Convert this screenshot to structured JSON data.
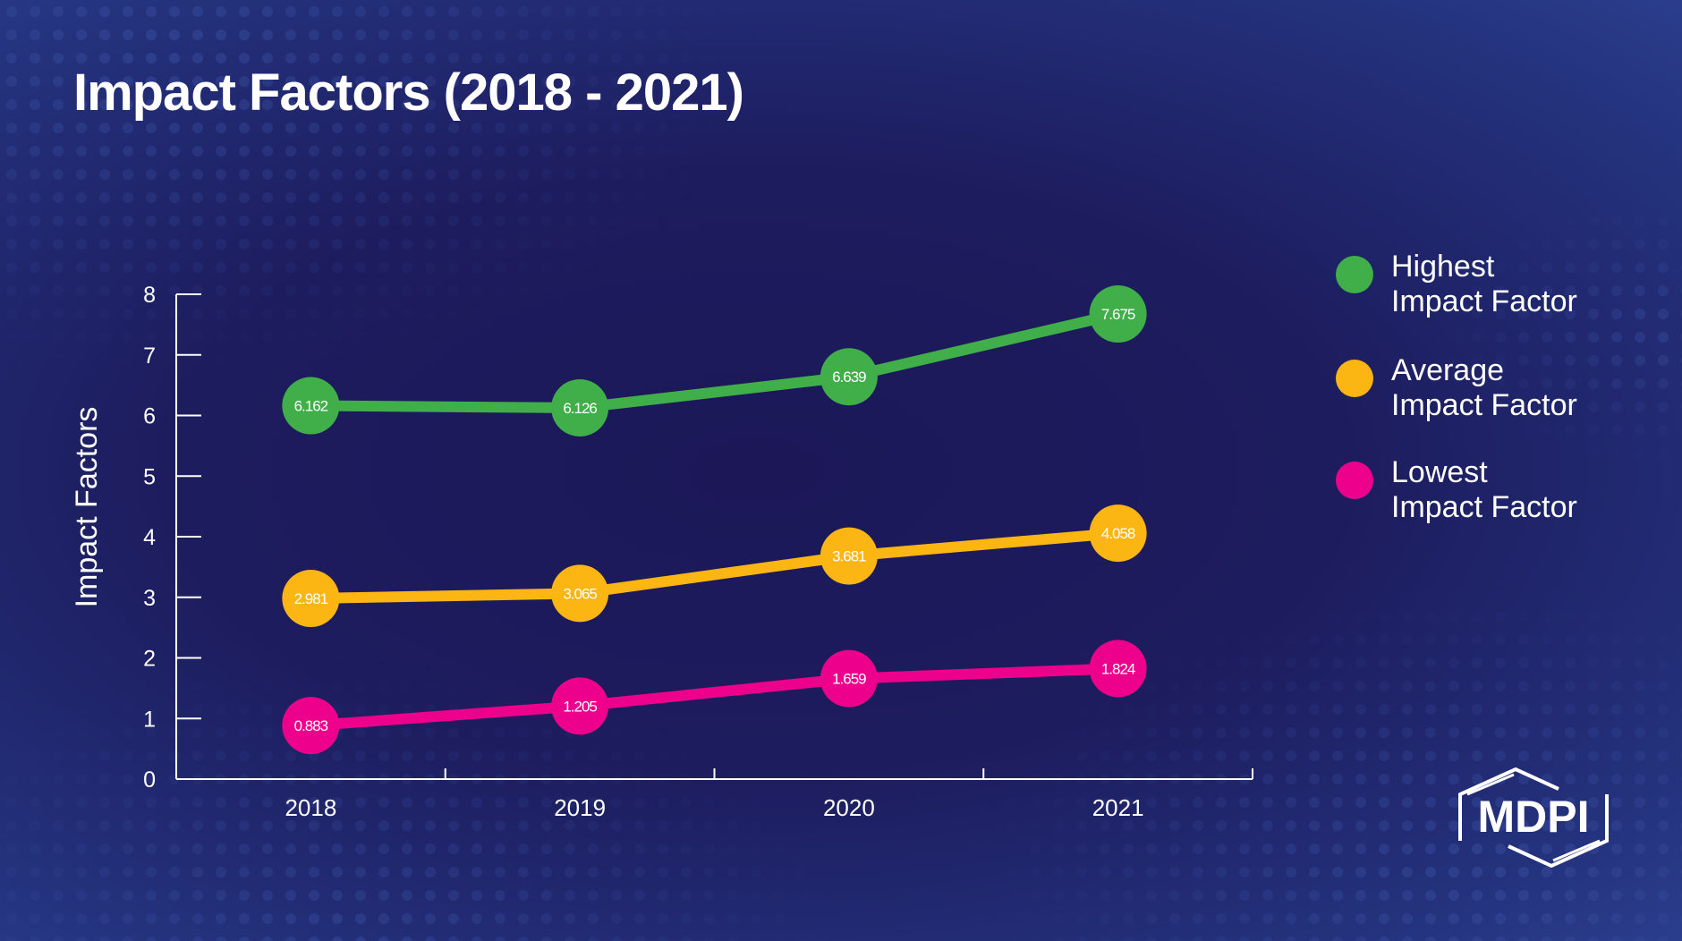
{
  "title": "Impact Factors (2018 - 2021)",
  "colors": {
    "highest": "#40ae49",
    "average": "#fcb614",
    "lowest": "#ec008c",
    "background": "#1d1c5e"
  },
  "logo_text": "MDPI",
  "chart_data": {
    "type": "line",
    "title": "Impact Factors (2018 - 2021)",
    "xlabel": "",
    "ylabel": "Impact Factors",
    "ylim": [
      0,
      8
    ],
    "yticks": [
      "0",
      "1",
      "2",
      "3",
      "4",
      "5",
      "6",
      "7",
      "8"
    ],
    "categories": [
      "2018",
      "2019",
      "2020",
      "2021"
    ],
    "grid": false,
    "legend_position": "right",
    "series": [
      {
        "name": "Highest Impact Factor",
        "color": "#40ae49",
        "values": [
          6.162,
          6.126,
          6.639,
          7.675
        ],
        "labels": [
          "6.162",
          "6.126",
          "6.639",
          "7.675"
        ]
      },
      {
        "name": "Average Impact Factor",
        "color": "#fcb614",
        "values": [
          2.981,
          3.065,
          3.681,
          4.058
        ],
        "labels": [
          "2.981",
          "3.065",
          "3.681",
          "4.058"
        ]
      },
      {
        "name": "Lowest Impact Factor",
        "color": "#ec008c",
        "values": [
          0.883,
          1.205,
          1.659,
          1.824
        ],
        "labels": [
          "0.883",
          "1.205",
          "1.659",
          "1.824"
        ]
      }
    ]
  },
  "legend": [
    {
      "line1": "Highest",
      "line2": "Impact Factor"
    },
    {
      "line1": "Average",
      "line2": "Impact Factor"
    },
    {
      "line1": "Lowest",
      "line2": "Impact Factor"
    }
  ]
}
